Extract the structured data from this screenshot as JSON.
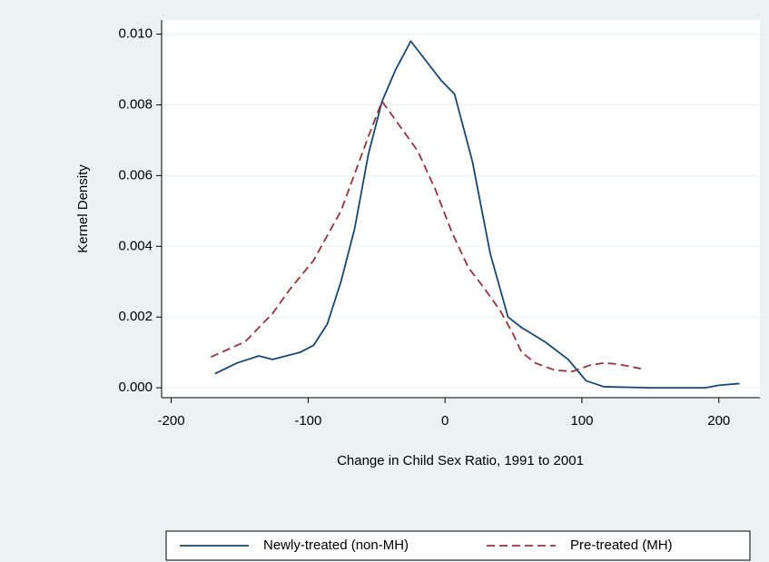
{
  "chart_data": {
    "type": "line",
    "x_label": "Change in Child Sex Ratio, 1991 to 2001",
    "y_label": "Kernel Density",
    "xlim": [
      -207,
      230
    ],
    "ylim": [
      -0.00028,
      0.0104
    ],
    "xticks": [
      -200,
      -100,
      0,
      100,
      200
    ],
    "yticks": [
      {
        "value": 0,
        "label": "0.000"
      },
      {
        "value": 0.002,
        "label": "0.002"
      },
      {
        "value": 0.004,
        "label": "0.004"
      },
      {
        "value": 0.006,
        "label": "0.006"
      },
      {
        "value": 0.008,
        "label": "0.008"
      },
      {
        "value": 0.01,
        "label": "0.010"
      }
    ],
    "grid": true,
    "legend": "bottom",
    "series": [
      {
        "name": "Newly-treated (non-MH)",
        "color": "#1a476f",
        "dash": "solid",
        "x": [
          -168,
          -152,
          -136,
          -126,
          -106,
          -96,
          -86,
          -76,
          -66,
          -56,
          -46,
          -36,
          -25,
          -3,
          7,
          20,
          33,
          46,
          56,
          73,
          90,
          103,
          116,
          150,
          190,
          200,
          215
        ],
        "values": [
          0.0004,
          0.0007,
          0.0009,
          0.0008,
          0.001,
          0.0012,
          0.0018,
          0.003,
          0.0045,
          0.0066,
          0.0081,
          0.009,
          0.0098,
          0.0087,
          0.0083,
          0.0064,
          0.0038,
          0.002,
          0.0017,
          0.0013,
          0.0008,
          0.0002,
          3e-05,
          0,
          0,
          7e-05,
          0.00012
        ]
      },
      {
        "name": "Pre-treated (MH)",
        "color": "#90353b",
        "dash": "dashed",
        "x": [
          -171,
          -146,
          -126,
          -113,
          -96,
          -76,
          -56,
          -46,
          -20,
          -7,
          5,
          17,
          27,
          40,
          50,
          56,
          66,
          80,
          93,
          106,
          116,
          126,
          143
        ],
        "values": [
          0.00087,
          0.0013,
          0.0021,
          0.0028,
          0.0036,
          0.005,
          0.0071,
          0.0081,
          0.0067,
          0.0056,
          0.0044,
          0.0034,
          0.0029,
          0.0022,
          0.0015,
          0.001,
          0.0007,
          0.0005,
          0.00046,
          0.00064,
          0.0007,
          0.00067,
          0.00054
        ]
      }
    ]
  }
}
